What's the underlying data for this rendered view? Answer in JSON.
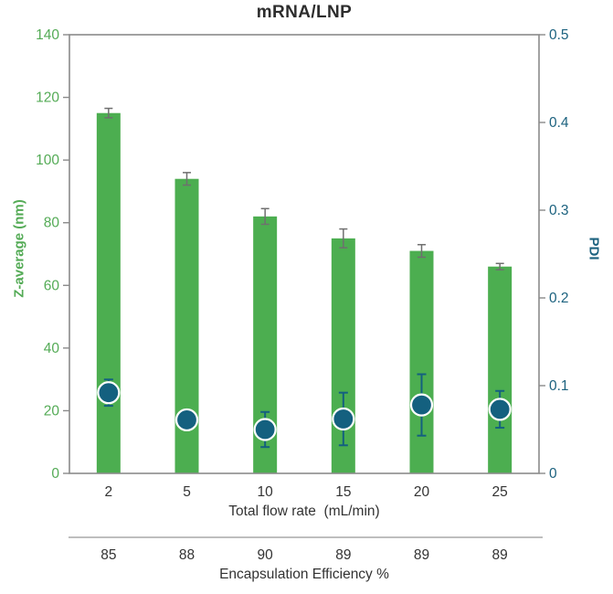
{
  "title": "mRNA/LNP",
  "colors": {
    "bar_green": "#4cae50",
    "green_text": "#54ab56",
    "teal_text": "#1c627f",
    "teal_dot": "#14607f",
    "axis_gray": "#8a8a8a",
    "error_gray": "#6f6f6f",
    "separator_gray": "#a8a8a8",
    "text_dark": "#333333"
  },
  "chart_data": {
    "type": "bar",
    "title": "mRNA/LNP",
    "categories": [
      "2",
      "5",
      "10",
      "15",
      "20",
      "25"
    ],
    "xlabel": "Total flow rate  (mL/min)",
    "left_axis": {
      "label": "Z-average (nm)",
      "min": 0,
      "max": 140,
      "ticks": [
        0,
        20,
        40,
        60,
        80,
        100,
        120,
        140
      ]
    },
    "right_axis": {
      "label": "PDI",
      "min": 0,
      "max": 0.5,
      "ticks": [
        0,
        0.1,
        0.2,
        0.3,
        0.4,
        0.5
      ]
    },
    "series": [
      {
        "name": "Z-average (nm)",
        "type": "bar",
        "axis": "left",
        "values": [
          115,
          94,
          82,
          75,
          71,
          66
        ],
        "errors": [
          1.5,
          2,
          2.5,
          3,
          2,
          1
        ]
      },
      {
        "name": "PDI",
        "type": "scatter",
        "axis": "right",
        "values": [
          0.092,
          0.061,
          0.05,
          0.062,
          0.078,
          0.073
        ],
        "errors": [
          0.015,
          0.01,
          0.02,
          0.03,
          0.035,
          0.021
        ]
      }
    ],
    "footer": {
      "label": "Encapsulation Efficiency %",
      "values": [
        "85",
        "88",
        "90",
        "89",
        "89",
        "89"
      ]
    },
    "legend_position": "none",
    "grid": false
  }
}
